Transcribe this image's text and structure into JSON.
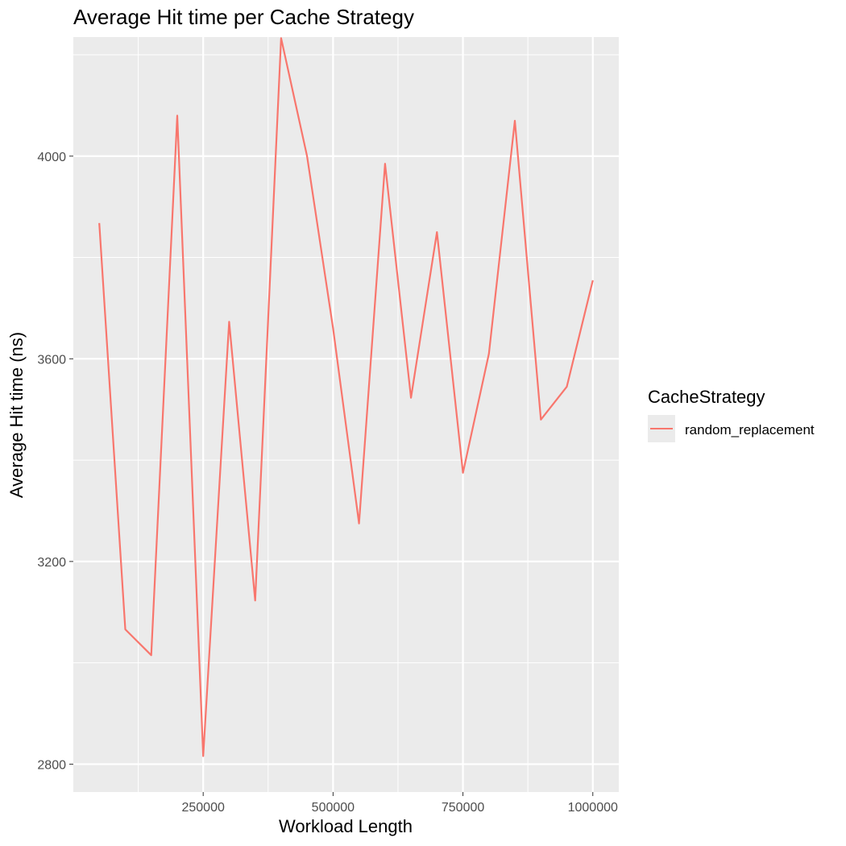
{
  "chart_data": {
    "type": "line",
    "title": "Average Hit time per Cache Strategy",
    "xlabel": "Workload Length",
    "ylabel": "Average Hit time (ns)",
    "xlim": [
      0,
      1050000
    ],
    "ylim": [
      2745,
      4235
    ],
    "x_ticks": [
      250000,
      500000,
      750000,
      1000000
    ],
    "x_tick_labels": [
      "250000",
      "500000",
      "750000",
      "1000000"
    ],
    "y_ticks": [
      2800,
      3200,
      3600,
      4000
    ],
    "y_tick_labels": [
      "2800",
      "3200",
      "3600",
      "4000"
    ],
    "grid": true,
    "legend": {
      "title": "CacheStrategy",
      "position": "right"
    },
    "series": [
      {
        "name": "random_replacement",
        "color": "#F8766D",
        "x": [
          50000,
          100000,
          150000,
          200000,
          250000,
          300000,
          350000,
          400000,
          450000,
          500000,
          550000,
          600000,
          650000,
          700000,
          750000,
          800000,
          850000,
          900000,
          950000,
          1000000
        ],
        "y": [
          3868,
          3066,
          3015,
          4080,
          2816,
          3673,
          3123,
          4233,
          4000,
          3660,
          3275,
          3985,
          3523,
          3850,
          3375,
          3610,
          4070,
          3480,
          3545,
          3755
        ]
      }
    ]
  }
}
